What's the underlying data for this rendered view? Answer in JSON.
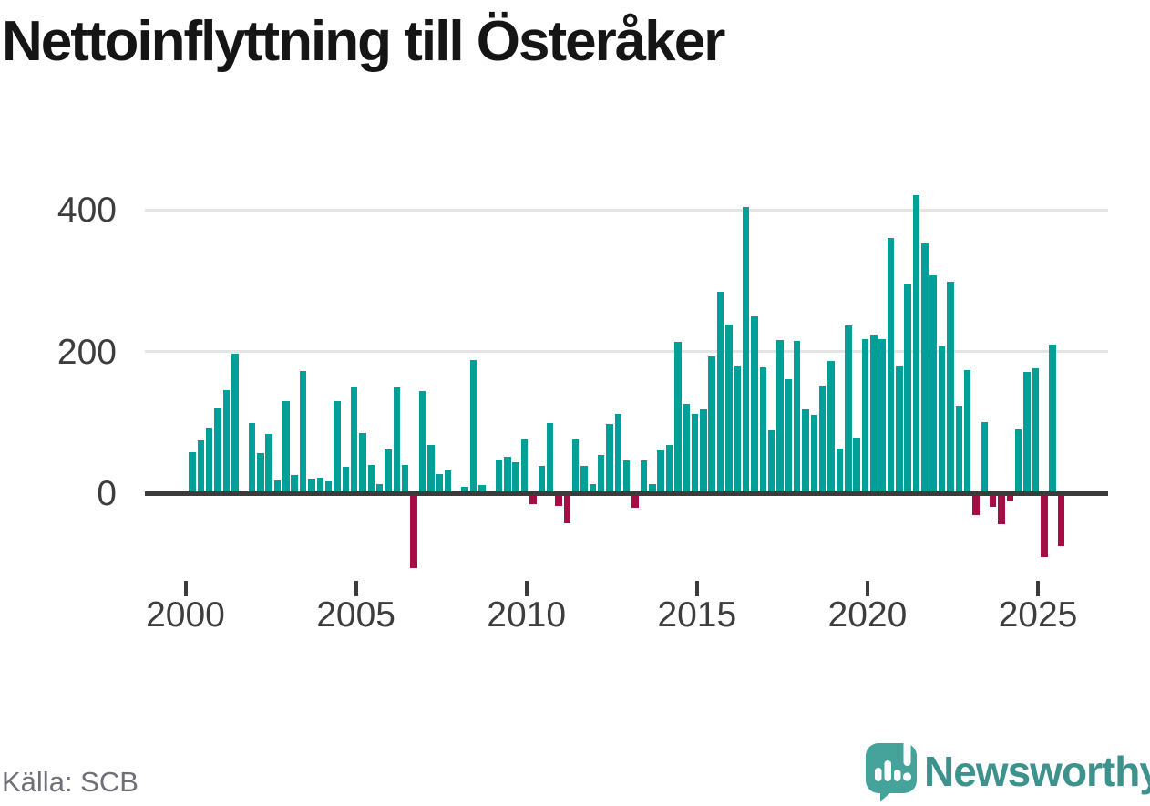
{
  "title": "Nettoinflyttning till Österåker",
  "source": "Källa: SCB",
  "branding": {
    "name": "Newsworthy"
  },
  "chart_data": {
    "type": "bar",
    "title": "Nettoinflyttning till Österåker",
    "frequency": "quarterly",
    "x_start": "2000-Q1",
    "x_end": "2025-Q3",
    "x_tick_labels": [
      "2000",
      "2005",
      "2010",
      "2015",
      "2020",
      "2025"
    ],
    "y_ticks": [
      0,
      200,
      400
    ],
    "y_gridlines": [
      200,
      400
    ],
    "ylim": [
      -130,
      460
    ],
    "grid": "horizontal gridlines at 200 and 400, emphasized zero axis",
    "legend": "none",
    "positive_color": "#00a098",
    "negative_color": "#a50d45",
    "values": [
      58,
      75,
      93,
      120,
      145,
      197,
      0,
      99,
      57,
      83,
      18,
      130,
      26,
      172,
      20,
      22,
      17,
      130,
      37,
      150,
      85,
      40,
      13,
      62,
      149,
      40,
      -106,
      144,
      68,
      27,
      32,
      0,
      9,
      188,
      12,
      0,
      48,
      52,
      44,
      76,
      -15,
      39,
      99,
      -18,
      -42,
      76,
      38,
      13,
      54,
      98,
      112,
      46,
      -20,
      46,
      13,
      60,
      68,
      214,
      126,
      112,
      118,
      193,
      284,
      238,
      180,
      404,
      250,
      178,
      89,
      216,
      161,
      215,
      118,
      111,
      152,
      187,
      63,
      237,
      78,
      217,
      224,
      218,
      360,
      180,
      295,
      420,
      352,
      307,
      207,
      299,
      123,
      174,
      -31,
      100,
      -19,
      -44,
      -11,
      90,
      171,
      176,
      -90,
      210,
      -74
    ]
  }
}
